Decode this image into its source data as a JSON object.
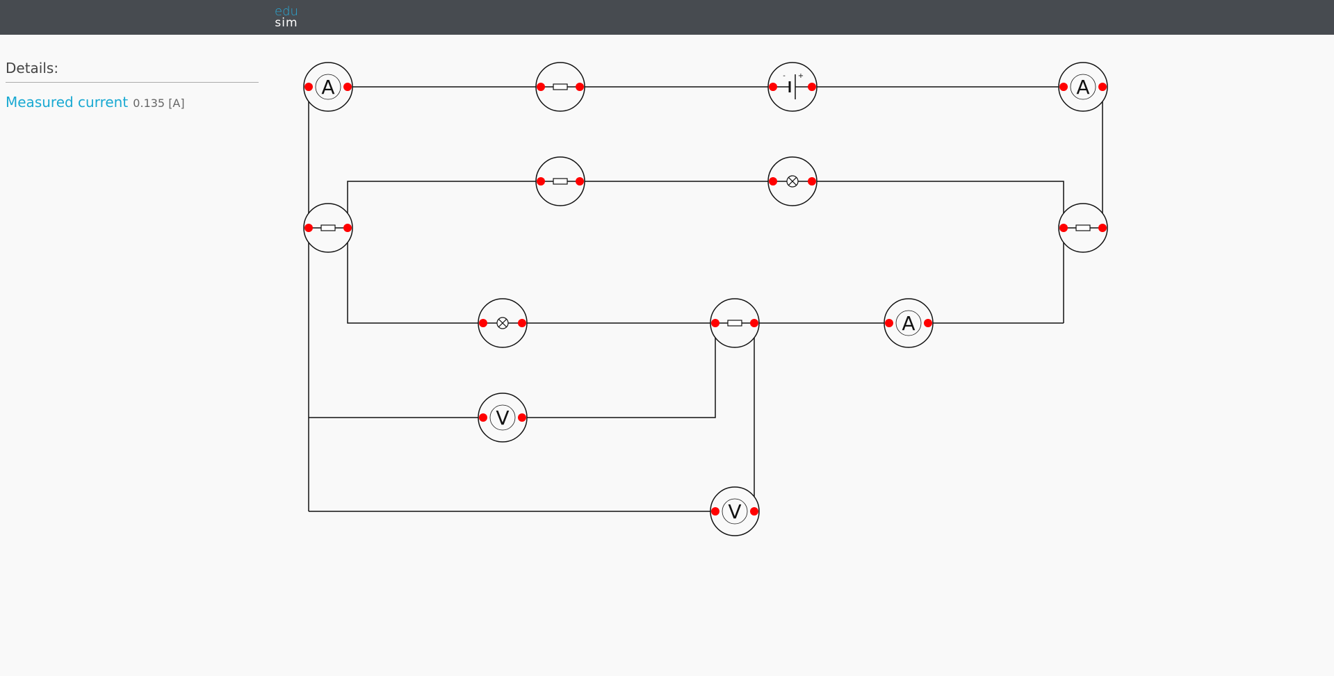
{
  "app": {
    "logo_top": "edu",
    "logo_bottom": "sim"
  },
  "details": {
    "title": "Details:",
    "property_name": "Measured current",
    "property_value": "0.135 [A]"
  },
  "components": [
    {
      "id": "ammeter-1",
      "type": "ammeter",
      "label": "A"
    },
    {
      "id": "resistor-1",
      "type": "resistor"
    },
    {
      "id": "battery-1",
      "type": "battery",
      "minus": "-",
      "plus": "+"
    },
    {
      "id": "ammeter-2",
      "type": "ammeter",
      "label": "A"
    },
    {
      "id": "resistor-2",
      "type": "resistor"
    },
    {
      "id": "lamp-1",
      "type": "lamp"
    },
    {
      "id": "resistor-3",
      "type": "resistor"
    },
    {
      "id": "resistor-4",
      "type": "resistor"
    },
    {
      "id": "lamp-2",
      "type": "lamp"
    },
    {
      "id": "resistor-5",
      "type": "resistor"
    },
    {
      "id": "ammeter-3",
      "type": "ammeter",
      "label": "A"
    },
    {
      "id": "voltmeter-1",
      "type": "voltmeter",
      "label": "V"
    },
    {
      "id": "voltmeter-2",
      "type": "voltmeter",
      "label": "V"
    }
  ],
  "colors": {
    "topbar": "#474b50",
    "accent": "#19a9d2",
    "node": "#ff0000"
  }
}
